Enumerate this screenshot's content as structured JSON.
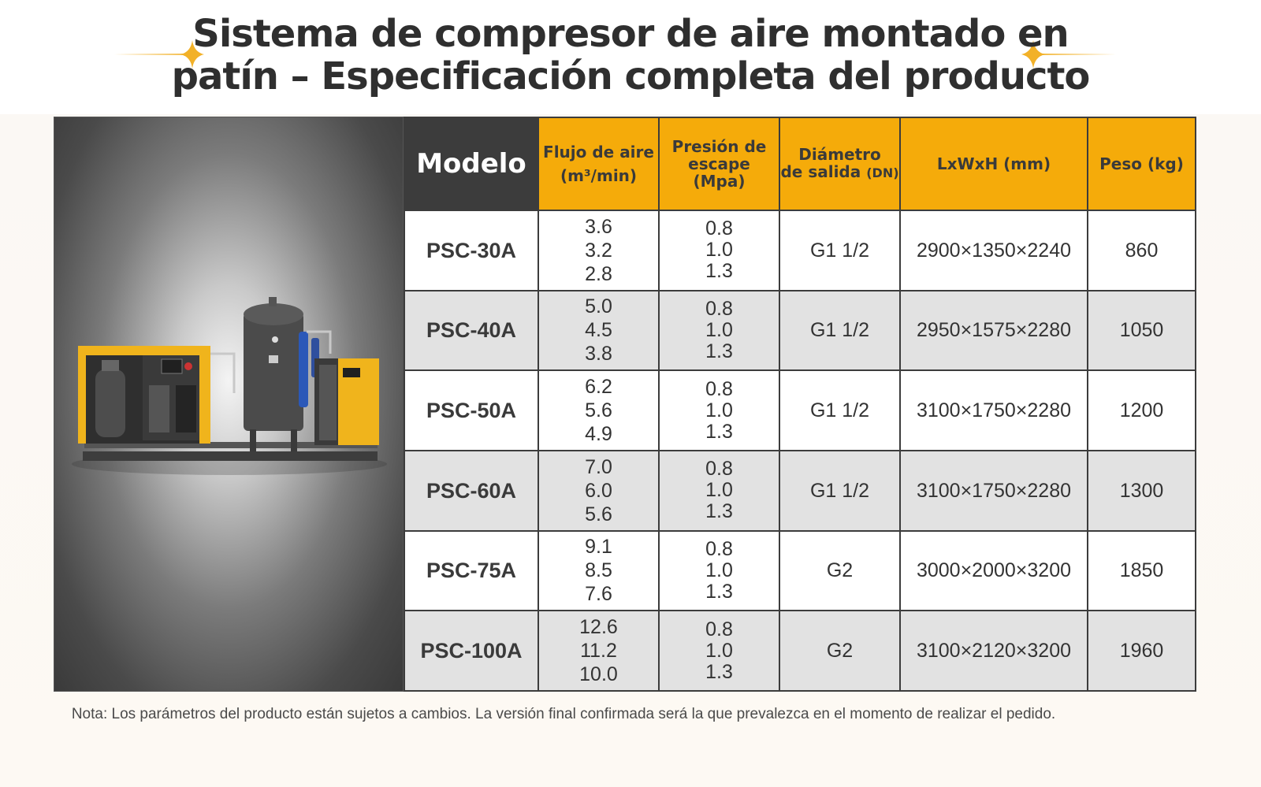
{
  "title": {
    "line1": "Sistema de compresor de aire montado en",
    "line2": "patín – Especificación completa del producto"
  },
  "accent_color": "#f5ab0a",
  "header_dark_color": "#3c3c3c",
  "table": {
    "headers": {
      "model": "Modelo",
      "flow_line1": "Flujo de aire",
      "flow_line2": "(m³/min)",
      "pressure_line1": "Presión de",
      "pressure_line2": "escape (Mpa)",
      "diameter_line1": "Diámetro",
      "diameter_line2": "de salida",
      "diameter_unit": "(DN)",
      "dims": "LxWxH (mm)",
      "weight": "Peso (kg)"
    },
    "rows": [
      {
        "model": "PSC-30A",
        "flow": [
          "3.6",
          "3.2",
          "2.8"
        ],
        "pressure": [
          "0.8",
          "1.0",
          "1.3"
        ],
        "diameter": "G1 1/2",
        "dims": "2900×1350×2240",
        "weight": "860"
      },
      {
        "model": "PSC-40A",
        "flow": [
          "5.0",
          "4.5",
          "3.8"
        ],
        "pressure": [
          "0.8",
          "1.0",
          "1.3"
        ],
        "diameter": "G1 1/2",
        "dims": "2950×1575×2280",
        "weight": "1050"
      },
      {
        "model": "PSC-50A",
        "flow": [
          "6.2",
          "5.6",
          "4.9"
        ],
        "pressure": [
          "0.8",
          "1.0",
          "1.3"
        ],
        "diameter": "G1 1/2",
        "dims": "3100×1750×2280",
        "weight": "1200"
      },
      {
        "model": "PSC-60A",
        "flow": [
          "7.0",
          "6.0",
          "5.6"
        ],
        "pressure": [
          "0.8",
          "1.0",
          "1.3"
        ],
        "diameter": "G1 1/2",
        "dims": "3100×1750×2280",
        "weight": "1300"
      },
      {
        "model": "PSC-75A",
        "flow": [
          "9.1",
          "8.5",
          "7.6"
        ],
        "pressure": [
          "0.8",
          "1.0",
          "1.3"
        ],
        "diameter": "G2",
        "dims": "3000×2000×3200",
        "weight": "1850"
      },
      {
        "model": "PSC-100A",
        "flow": [
          "12.6",
          "11.2",
          "10.0"
        ],
        "pressure": [
          "0.8",
          "1.0",
          "1.3"
        ],
        "diameter": "G2",
        "dims": "3100×2120×3200",
        "weight": "1960"
      }
    ]
  },
  "note": "Nota: Los parámetros del producto están sujetos a cambios. La versión final confirmada será la que prevalezca en el momento de realizar el pedido."
}
